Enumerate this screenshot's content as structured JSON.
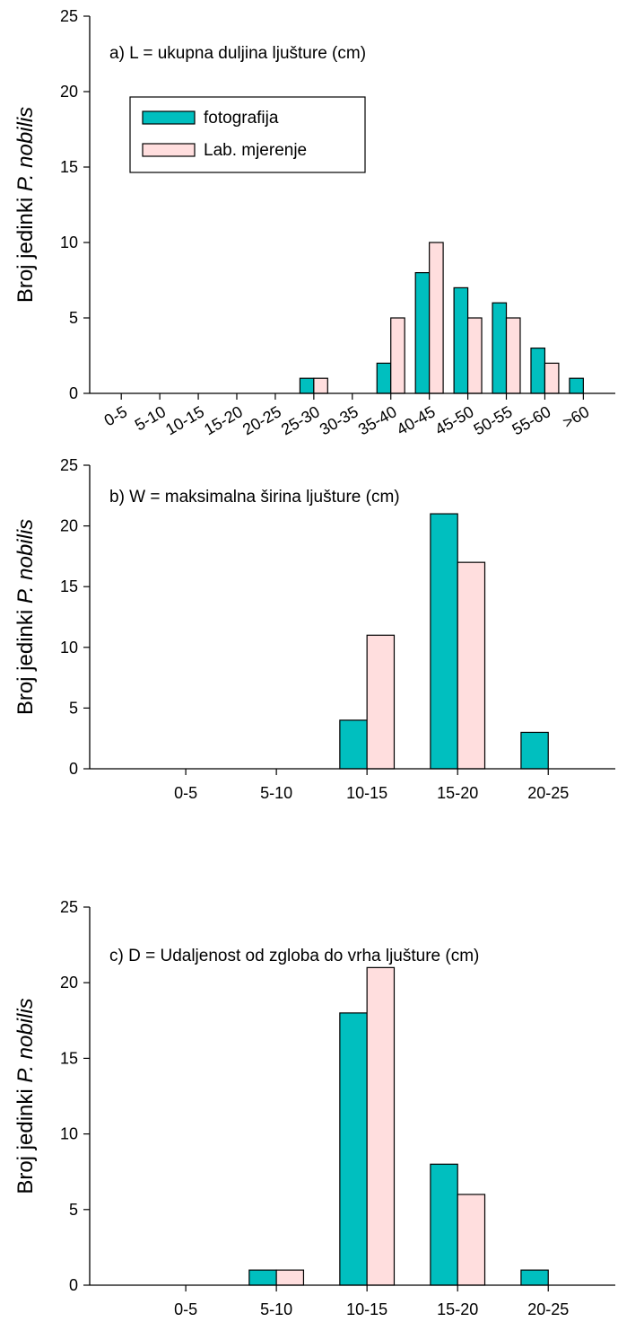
{
  "ylabel": {
    "prefix": "Broj jedinki ",
    "italic": "P. nobilis"
  },
  "colors": {
    "fotografija": "#00BFBF",
    "lab": "#FFDEDE"
  },
  "legend": {
    "items": [
      {
        "key": "fotografija",
        "label": "fotografija"
      },
      {
        "key": "lab",
        "label": "Lab. mjerenje"
      }
    ]
  },
  "chart_data": [
    {
      "type": "bar",
      "title": "a) L = ukupna duljina ljušture (cm)",
      "xlabel": "",
      "ylabel": "Broj jedinki P. nobilis",
      "ylim": [
        0,
        25
      ],
      "yticks": [
        0,
        5,
        10,
        15,
        20,
        25
      ],
      "categories": [
        "0-5",
        "5-10",
        "10-15",
        "15-20",
        "20-25",
        "25-30",
        "30-35",
        "35-40",
        "40-45",
        "45-50",
        "50-55",
        "55-60",
        ">60"
      ],
      "series": [
        {
          "name": "fotografija",
          "values": [
            0,
            0,
            0,
            0,
            0,
            1,
            0,
            2,
            8,
            7,
            6,
            3,
            1
          ]
        },
        {
          "name": "Lab. mjerenje",
          "values": [
            0,
            0,
            0,
            0,
            0,
            1,
            0,
            5,
            10,
            5,
            5,
            2,
            0
          ]
        }
      ],
      "legend": "top-left",
      "grid": false
    },
    {
      "type": "bar",
      "title": "b) W = maksimalna širina ljušture (cm)",
      "xlabel": "",
      "ylabel": "Broj jedinki P. nobilis",
      "ylim": [
        0,
        25
      ],
      "yticks": [
        0,
        5,
        10,
        15,
        20,
        25
      ],
      "categories": [
        "0-5",
        "5-10",
        "10-15",
        "15-20",
        "20-25"
      ],
      "series": [
        {
          "name": "fotografija",
          "values": [
            0,
            0,
            4,
            21,
            3
          ]
        },
        {
          "name": "Lab. mjerenje",
          "values": [
            0,
            0,
            11,
            17,
            0
          ]
        }
      ],
      "grid": false
    },
    {
      "type": "bar",
      "title": "c) D = Udaljenost od zgloba do vrha ljušture (cm)",
      "xlabel": "",
      "ylabel": "Broj jedinki P. nobilis",
      "ylim": [
        0,
        25
      ],
      "yticks": [
        0,
        5,
        10,
        15,
        20,
        25
      ],
      "categories": [
        "0-5",
        "5-10",
        "10-15",
        "15-20",
        "20-25"
      ],
      "series": [
        {
          "name": "fotografija",
          "values": [
            0,
            1,
            18,
            8,
            1
          ]
        },
        {
          "name": "Lab. mjerenje",
          "values": [
            0,
            1,
            21,
            6,
            0
          ]
        }
      ],
      "grid": false
    }
  ]
}
